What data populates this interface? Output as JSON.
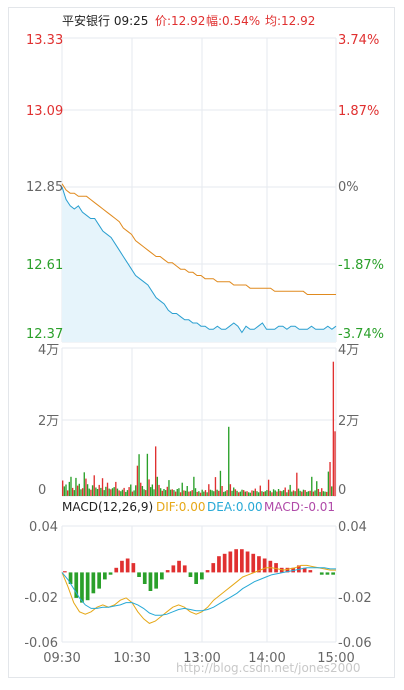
{
  "header": {
    "name_time": "平安银行 09:25",
    "price": "价:12.92",
    "change": "幅:0.54%",
    "avg": "均:12.92"
  },
  "macd_header": {
    "label": "MACD(12,26,9)",
    "dif": "DIF:0.00",
    "dea": "DEA:0.00",
    "macd": "MACD:-0.01"
  },
  "watermark": "http://blog.csdn.net/jones2000",
  "colors": {
    "up": "#e03030",
    "down": "#2aa02a",
    "price_line": "#2a9fd0",
    "avg_line": "#e08a1e",
    "area_fill": "#e6f4fb",
    "grid": "#e6eaef",
    "dif": "#e6a817",
    "dea": "#27a9d6",
    "macd_label": "#b04aa8",
    "axis_text": "#666666"
  },
  "chart_data": [
    {
      "type": "line",
      "title": "平安银行 09:25",
      "x_ticks": [
        "09:30",
        "10:30",
        "13:00",
        "14:00",
        "15:00"
      ],
      "y_ticks_left": [
        "13.33",
        "13.09",
        "12.85",
        "12.61",
        "12.37"
      ],
      "y_ticks_right": [
        "3.74%",
        "1.87%",
        "0%",
        "-1.87%",
        "-3.74%"
      ],
      "ylim": [
        12.37,
        13.33
      ],
      "prev_close": 12.85,
      "series": [
        {
          "name": "价",
          "values": [
            12.86,
            12.82,
            12.8,
            12.79,
            12.8,
            12.78,
            12.77,
            12.76,
            12.76,
            12.74,
            12.72,
            12.71,
            12.7,
            12.68,
            12.66,
            12.64,
            12.62,
            12.6,
            12.58,
            12.57,
            12.56,
            12.55,
            12.53,
            12.51,
            12.5,
            12.49,
            12.47,
            12.46,
            12.46,
            12.45,
            12.44,
            12.44,
            12.43,
            12.43,
            12.42,
            12.42,
            12.41,
            12.41,
            12.42,
            12.41,
            12.41,
            12.42,
            12.43,
            12.42,
            12.4,
            12.42,
            12.41,
            12.41,
            12.42,
            12.43,
            12.41,
            12.41,
            12.41,
            12.42,
            12.42,
            12.41,
            12.42,
            12.42,
            12.41,
            12.41,
            12.41,
            12.42,
            12.41,
            12.41,
            12.41,
            12.42,
            12.41,
            12.42
          ]
        },
        {
          "name": "均",
          "values": [
            12.87,
            12.85,
            12.84,
            12.84,
            12.83,
            12.83,
            12.83,
            12.82,
            12.81,
            12.8,
            12.79,
            12.78,
            12.77,
            12.76,
            12.75,
            12.73,
            12.72,
            12.71,
            12.69,
            12.68,
            12.67,
            12.66,
            12.65,
            12.64,
            12.64,
            12.63,
            12.62,
            12.62,
            12.61,
            12.6,
            12.6,
            12.59,
            12.59,
            12.58,
            12.58,
            12.57,
            12.57,
            12.57,
            12.56,
            12.56,
            12.56,
            12.56,
            12.55,
            12.55,
            12.55,
            12.55,
            12.54,
            12.54,
            12.54,
            12.54,
            12.54,
            12.54,
            12.53,
            12.53,
            12.53,
            12.53,
            12.53,
            12.53,
            12.53,
            12.53,
            12.52,
            12.52,
            12.52,
            12.52,
            12.52,
            12.52,
            12.52,
            12.52
          ]
        }
      ]
    },
    {
      "type": "bar",
      "y_ticks_left": [
        "4万",
        "2万",
        "0"
      ],
      "y_ticks_right": [
        "4万",
        "2万",
        "0"
      ],
      "ylim": [
        0,
        40000
      ],
      "values": [
        4200,
        2600,
        3100,
        1500,
        3800,
        5200,
        2200,
        1600,
        4900,
        2800,
        3300,
        1800,
        2100,
        6400,
        4700,
        3200,
        2000,
        1700,
        2900,
        5600,
        2300,
        1900,
        3000,
        2200,
        4800,
        1600,
        2500,
        3600,
        2000,
        1800,
        2100,
        2400,
        3800,
        2000,
        1500,
        1300,
        1700,
        2200,
        1100,
        1600,
        2400,
        3100,
        1200,
        1500,
        2900,
        8200,
        11300,
        3600,
        2700,
        1800,
        1600,
        11400,
        4500,
        2400,
        3100,
        1800,
        13400,
        5200,
        3000,
        2100,
        1400,
        1900,
        1600,
        2500,
        4300,
        1700,
        1800,
        1600,
        1200,
        1900,
        2100,
        1000,
        3600,
        1500,
        1400,
        2700,
        1200,
        1300,
        1600,
        5200,
        2100,
        1100,
        1300,
        900,
        1700,
        1200,
        1600,
        1000,
        3200,
        1700,
        1500,
        1300,
        5100,
        1700,
        1400,
        6800,
        2700,
        1100,
        1300,
        1600,
        18700,
        3200,
        1400,
        2300,
        1800,
        1400,
        1000,
        1200,
        1700,
        1600,
        1200,
        1300,
        1000,
        900,
        1500,
        1400,
        2000,
        1300,
        1000,
        2800,
        1300,
        1100,
        1300,
        1600,
        4400,
        1400,
        1000,
        1800,
        1500,
        1200,
        1900,
        1400,
        1300,
        1600,
        2300,
        1000,
        1700,
        3000,
        1200,
        1500,
        1300,
        6300,
        2000,
        1400,
        1200,
        1700,
        1600,
        1100,
        1300,
        1400,
        5200,
        1200,
        1500,
        4000,
        1900,
        1100,
        2100,
        1300,
        1200,
        1100,
        6600,
        9200,
        2600,
        36300,
        17500
      ],
      "colors_up": [
        1,
        0,
        0,
        1,
        0,
        0,
        1,
        0,
        0,
        1,
        0,
        0,
        1,
        0,
        1,
        0,
        0,
        1,
        0,
        1,
        0,
        0,
        1,
        0,
        1,
        0,
        0,
        1,
        0,
        1,
        0,
        0,
        1,
        0,
        1,
        0,
        0,
        1,
        0,
        0,
        1,
        0,
        1,
        0,
        0,
        1,
        0,
        1,
        0,
        0,
        1,
        0,
        1,
        0,
        0,
        0,
        1,
        0,
        1,
        0,
        1,
        0,
        0,
        1,
        0,
        0,
        1,
        0,
        1,
        0,
        0,
        1,
        0,
        1,
        0,
        0,
        1,
        0,
        1,
        0,
        0,
        1,
        0,
        1,
        0,
        0,
        1,
        0,
        1,
        0,
        0,
        0,
        1,
        0,
        1,
        0,
        1,
        0,
        0,
        1,
        0,
        1,
        0,
        0,
        1,
        0,
        1,
        0,
        0,
        1,
        0,
        1,
        0,
        0,
        1,
        0,
        1,
        0,
        0,
        1,
        0,
        1,
        0,
        0,
        1,
        0,
        1,
        0,
        0,
        1,
        0,
        1,
        0,
        0,
        1,
        0,
        1,
        0,
        0,
        1,
        0,
        1,
        0,
        0,
        1,
        0,
        1,
        0,
        0,
        1,
        0,
        1,
        0,
        0,
        1,
        0,
        1,
        0,
        0,
        1,
        0,
        1,
        0,
        1,
        1
      ]
    },
    {
      "type": "bar",
      "title": "MACD(12,26,9)",
      "y_ticks_left": [
        "0.04",
        "-0.02",
        "-0.06"
      ],
      "y_ticks_right": [
        "0.04",
        "-0.02",
        "-0.06"
      ],
      "ylim": [
        -0.06,
        0.04
      ],
      "series": [
        {
          "name": "DIF",
          "values": [
            0.0,
            -0.012,
            -0.026,
            -0.034,
            -0.036,
            -0.034,
            -0.03,
            -0.028,
            -0.03,
            -0.028,
            -0.024,
            -0.022,
            -0.026,
            -0.034,
            -0.04,
            -0.044,
            -0.042,
            -0.038,
            -0.034,
            -0.03,
            -0.028,
            -0.03,
            -0.034,
            -0.036,
            -0.034,
            -0.03,
            -0.024,
            -0.02,
            -0.016,
            -0.012,
            -0.008,
            -0.004,
            -0.002,
            0.0,
            0.002,
            0.004,
            0.004,
            0.003,
            0.002,
            0.003,
            0.004,
            0.006,
            0.006,
            0.005,
            0.004,
            0.003,
            0.002,
            0.002
          ]
        },
        {
          "name": "DEA",
          "values": [
            0.0,
            -0.006,
            -0.014,
            -0.022,
            -0.028,
            -0.031,
            -0.031,
            -0.03,
            -0.03,
            -0.029,
            -0.028,
            -0.026,
            -0.026,
            -0.028,
            -0.031,
            -0.035,
            -0.037,
            -0.037,
            -0.036,
            -0.034,
            -0.032,
            -0.031,
            -0.032,
            -0.033,
            -0.033,
            -0.032,
            -0.03,
            -0.027,
            -0.024,
            -0.021,
            -0.018,
            -0.014,
            -0.011,
            -0.008,
            -0.006,
            -0.004,
            -0.002,
            -0.001,
            0.0,
            0.001,
            0.002,
            0.003,
            0.004,
            0.004,
            0.004,
            0.004,
            0.003,
            0.003
          ]
        },
        {
          "name": "MACD",
          "values": [
            0.001,
            -0.01,
            -0.022,
            -0.026,
            -0.024,
            -0.018,
            -0.014,
            -0.006,
            -0.002,
            0.004,
            0.01,
            0.012,
            0.008,
            -0.004,
            -0.01,
            -0.016,
            -0.014,
            -0.006,
            0.002,
            0.006,
            0.01,
            0.006,
            -0.004,
            -0.01,
            -0.006,
            0.002,
            0.008,
            0.014,
            0.016,
            0.018,
            0.02,
            0.02,
            0.018,
            0.016,
            0.014,
            0.012,
            0.01,
            0.008,
            0.004,
            0.004,
            0.004,
            0.006,
            0.004,
            0.002,
            0.0,
            -0.002,
            -0.002,
            -0.002
          ]
        }
      ]
    }
  ]
}
